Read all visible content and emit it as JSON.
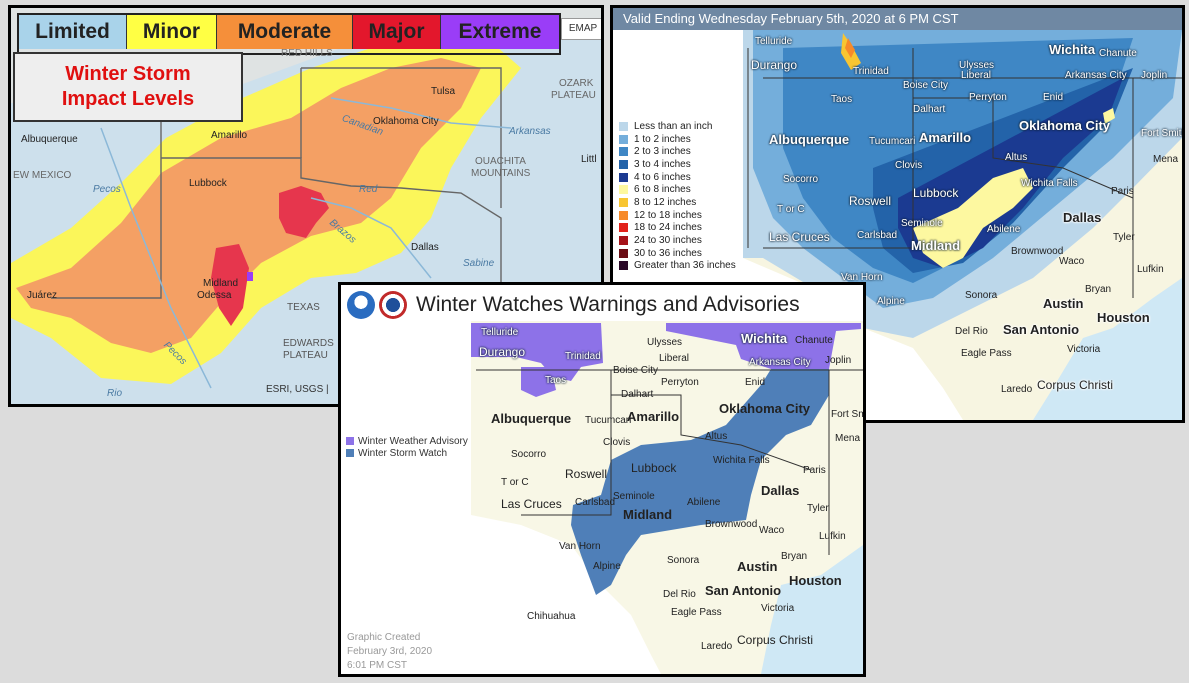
{
  "impact_panel": {
    "legend": [
      {
        "label": "Limited",
        "color": "#a9d3ea"
      },
      {
        "label": "Minor",
        "color": "#ffff44"
      },
      {
        "label": "Moderate",
        "color": "#f58f3a"
      },
      {
        "label": "Major",
        "color": "#e3172c"
      },
      {
        "label": "Extreme",
        "color": "#9a3df7"
      }
    ],
    "title": "Winter Storm Impact Levels",
    "basemap_label": "EMAP",
    "attribution": "ESRI, USGS |",
    "labels": {
      "red_hills": "RED HILLS",
      "ozark": "OZARK",
      "plateau": "PLATEAU",
      "tulsa": "Tulsa",
      "oklahoma_city": "Oklahoma City",
      "albuquerque": "Albuquerque",
      "amarillo": "Amarillo",
      "canadian": "Canadian",
      "arkansas": "Arkansas",
      "ouachita": "OUACHITA",
      "mountains": "MOUNTAINS",
      "little": "Littl",
      "new_mexico": "EW MEXICO",
      "pecos_north": "Pecos",
      "red": "Red",
      "lubbock": "Lubbock",
      "brazos": "Brazos",
      "dallas": "Dallas",
      "sabine": "Sabine",
      "midland": "Midland",
      "odessa": "Odessa",
      "juarez": "Juárez",
      "texas": "TEXAS",
      "edwards": "EDWARDS",
      "edwards_plateau": "PLATEAU",
      "pecos_south": "Pecos",
      "rio": "Rio"
    }
  },
  "snow_panel": {
    "header": "Valid Ending Wednesday February 5th, 2020 at 6 PM CST",
    "legend": [
      {
        "label": "Less than an inch",
        "color": "#bcd7ea"
      },
      {
        "label": "1 to 2 inches",
        "color": "#74aedb"
      },
      {
        "label": "2 to 3 inches",
        "color": "#3f87c5"
      },
      {
        "label": "3 to 4 inches",
        "color": "#2363a9"
      },
      {
        "label": "4 to 6 inches",
        "color": "#1b3a91"
      },
      {
        "label": "6 to 8 inches",
        "color": "#fdf8a0"
      },
      {
        "label": "8 to 12 inches",
        "color": "#f8c531"
      },
      {
        "label": "12 to 18 inches",
        "color": "#f78a2a"
      },
      {
        "label": "18 to 24 inches",
        "color": "#e2221b"
      },
      {
        "label": "24 to 30 inches",
        "color": "#a6131a"
      },
      {
        "label": "30 to 36 inches",
        "color": "#6b0d14"
      },
      {
        "label": "Greater than 36 inches",
        "color": "#2b0828"
      }
    ],
    "cities": {
      "telluride": "Telluride",
      "durango": "Durango",
      "trinidad": "Trinidad",
      "boise_city": "Boise City",
      "ulysses": "Ulysses",
      "liberal": "Liberal",
      "wichita": "Wichita",
      "chanute": "Chanute",
      "arkansas_city": "Arkansas City",
      "joplin": "Joplin",
      "taos": "Taos",
      "dalhart": "Dalhart",
      "perryton": "Perryton",
      "enid": "Enid",
      "albuquerque": "Albuquerque",
      "tucumcari": "Tucumcari",
      "amarillo": "Amarillo",
      "oklahoma_city": "Oklahoma City",
      "fort_smith": "Fort Smith",
      "altus": "Altus",
      "socorro": "Socorro",
      "clovis": "Clovis",
      "mena": "Mena",
      "lubbock": "Lubbock",
      "wichita_falls": "Wichita Falls",
      "roswell": "Roswell",
      "paris": "Paris",
      "t_or_c": "T or C",
      "seminole": "Seminole",
      "dallas": "Dallas",
      "las_cruces": "Las Cruces",
      "carlsbad": "Carlsbad",
      "midland": "Midland",
      "abilene": "Abilene",
      "tyler": "Tyler",
      "brownwood": "Brownwood",
      "van_horn": "Van Horn",
      "waco": "Waco",
      "lufkin": "Lufkin",
      "bryan": "Bryan",
      "alpine": "Alpine",
      "sonora": "Sonora",
      "austin": "Austin",
      "houston": "Houston",
      "san_antonio": "San Antonio",
      "del_rio": "Del Rio",
      "victoria": "Victoria",
      "eagle_pass": "Eagle Pass",
      "corpus_christi": "Corpus Christi",
      "laredo": "Laredo"
    }
  },
  "wwa_panel": {
    "title": "Winter Watches Warnings and Advisories",
    "legend": [
      {
        "label": "Winter Weather Advisory",
        "color": "#8d72e8"
      },
      {
        "label": "Winter Storm Watch",
        "color": "#4f7fb8"
      }
    ],
    "created": [
      "Graphic Created",
      "February 3rd, 2020",
      "6:01 PM CST"
    ],
    "cities": {
      "telluride": "Telluride",
      "durango": "Durango",
      "trinidad": "Trinidad",
      "ulysses": "Ulysses",
      "wichita": "Wichita",
      "chanute": "Chanute",
      "liberal": "Liberal",
      "arkansas_city": "Arkansas City",
      "joplin": "Joplin",
      "boise_city": "Boise City",
      "perryton": "Perryton",
      "taos": "Taos",
      "dalhart": "Dalhart",
      "enid": "Enid",
      "albuquerque": "Albuquerque",
      "amarillo": "Amarillo",
      "oklahoma_city": "Oklahoma City",
      "tucumcari": "Tucumcari",
      "fort_smith": "Fort Smith",
      "clovis": "Clovis",
      "altus": "Altus",
      "mena": "Mena",
      "socorro": "Socorro",
      "lubbock": "Lubbock",
      "wichita_falls": "Wichita Falls",
      "roswell": "Roswell",
      "paris": "Paris",
      "t_or_c": "T or C",
      "seminole": "Seminole",
      "dallas": "Dallas",
      "las_cruces": "Las Cruces",
      "carlsbad": "Carlsbad",
      "abilene": "Abilene",
      "midland": "Midland",
      "tyler": "Tyler",
      "brownwood": "Brownwood",
      "van_horn": "Van Horn",
      "waco": "Waco",
      "lufkin": "Lufkin",
      "bryan": "Bryan",
      "sonora": "Sonora",
      "alpine": "Alpine",
      "austin": "Austin",
      "houston": "Houston",
      "san_antonio": "San Antonio",
      "del_rio": "Del Rio",
      "eagle_pass": "Eagle Pass",
      "victoria": "Victoria",
      "chihuahua": "Chihuahua",
      "corpus_christi": "Corpus Christi",
      "laredo": "Laredo"
    }
  }
}
